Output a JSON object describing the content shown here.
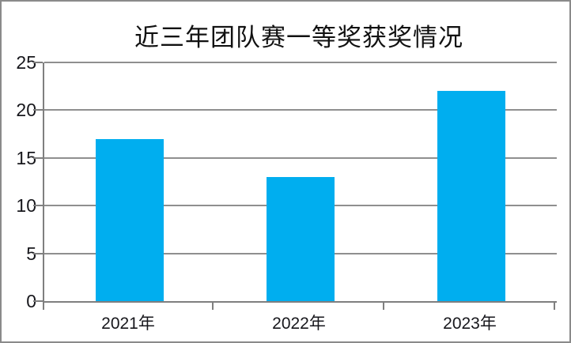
{
  "chart_data": {
    "type": "bar",
    "title": "近三年团队赛一等奖获奖情况",
    "categories": [
      "2021年",
      "2022年",
      "2023年"
    ],
    "values": [
      17,
      13,
      22
    ],
    "xlabel": "",
    "ylabel": "",
    "ylim": [
      0,
      25
    ],
    "yticks": [
      0,
      5,
      10,
      15,
      20,
      25
    ],
    "grid": "horizontal",
    "legend_position": "none",
    "bar_gap_ratio": "150%",
    "colors": {
      "bar": "#00AEEF",
      "gridline": "#8F8F8F",
      "axis": "#7F7F7F",
      "frame_border": "#8A8A8A",
      "label_text": "#17171C",
      "title_text": "#111111",
      "background": "#FFFFFF"
    }
  }
}
